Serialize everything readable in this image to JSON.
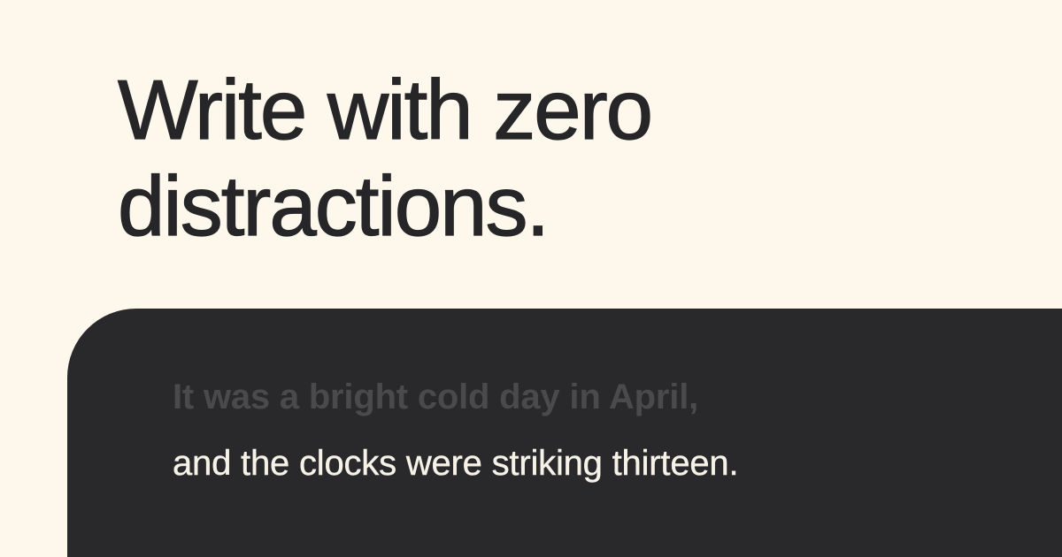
{
  "headline": {
    "line1": "Write with zero",
    "line2": "distractions."
  },
  "editor": {
    "previous_line": "It was a bright cold day in April,",
    "current_line": "and the clocks were striking thirteen."
  },
  "colors": {
    "background": "#fdf7ec",
    "headline_text": "#262628",
    "editor_background": "#29292b",
    "faded_text": "#4a4a4c",
    "active_text": "#f7f2e8"
  }
}
